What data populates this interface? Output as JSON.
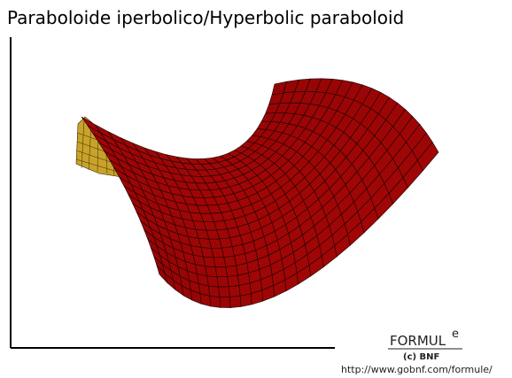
{
  "title": "Paraboloide iperbolico/Hyperbolic paraboloid",
  "logo": {
    "name": "FORMUL",
    "superscript": "e",
    "copyright": "(c) BNF"
  },
  "url": "http://www.gobnf.com/formule/"
}
